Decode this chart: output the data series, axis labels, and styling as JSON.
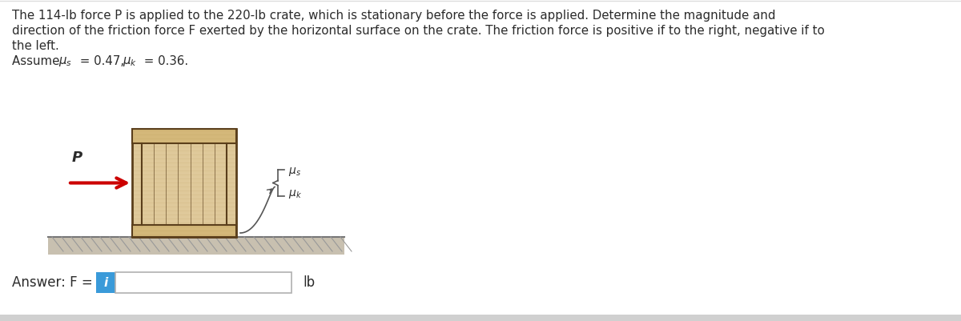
{
  "bg_color": "#ffffff",
  "text_color": "#2b2b2b",
  "title_lines": [
    "The 114-lb force P is applied to the 220-lb crate, which is stationary before the force is applied. Determine the magnitude and",
    "direction of the friction force F exerted by the horizontal surface on the crate. The friction force is positive if to the right, negative if to",
    "the left."
  ],
  "arrow_color": "#cc0000",
  "crate_face_color": "#dfc99a",
  "crate_panel_color": "#d4b87a",
  "crate_edge_color": "#5a3e1b",
  "floor_top_color": "#b0b0b0",
  "floor_fill_color": "#c8c0b0",
  "floor_hatch_color": "#999999",
  "info_button_color": "#3a9ad9",
  "input_border_color": "#b0b0b0",
  "bottom_bar_color": "#d0d0d0",
  "brace_color": "#555555"
}
